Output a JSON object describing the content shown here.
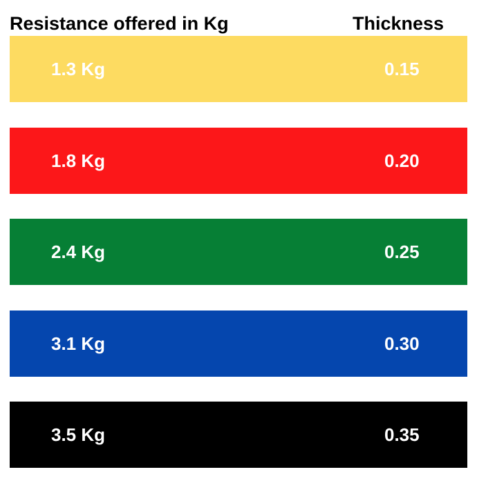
{
  "header": {
    "resistance_label": "Resistance offered in Kg",
    "thickness_label": "Thickness"
  },
  "bands": [
    {
      "resistance": "1.3 Kg",
      "thickness": "0.15",
      "color": "#FDDB61"
    },
    {
      "resistance": "1.8 Kg",
      "thickness": "0.20",
      "color": "#FC1719"
    },
    {
      "resistance": "2.4 Kg",
      "thickness": "0.25",
      "color": "#067F35"
    },
    {
      "resistance": "3.1 Kg",
      "thickness": "0.30",
      "color": "#0546AE"
    },
    {
      "resistance": "3.5 Kg",
      "thickness": "0.35",
      "color": "#000000"
    }
  ]
}
